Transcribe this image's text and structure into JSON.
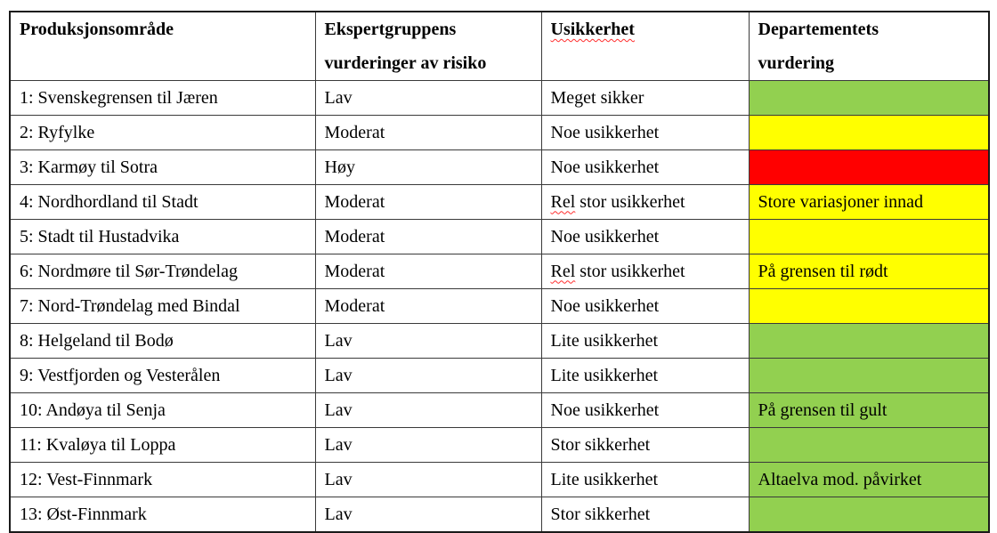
{
  "colors": {
    "green": "#92D050",
    "yellow": "#FFFF00",
    "red": "#FF0000"
  },
  "table": {
    "columns": [
      {
        "id": "produksjonsomrade",
        "label": "Produksjonsområde",
        "misspelled": false
      },
      {
        "id": "ekspertgruppens-vurderinger",
        "label": "Ekspertgruppens\nvurderinger av risiko",
        "misspelled": false
      },
      {
        "id": "usikkerhet",
        "label": "Usikkerhet",
        "misspelled": true
      },
      {
        "id": "departementets-vurdering",
        "label": "Departementets\nvurdering",
        "misspelled": false
      }
    ],
    "rows": [
      {
        "area": "1: Svenskegrensen til Jæren",
        "risk": "Lav",
        "uncertainty": "Meget sikker",
        "uncertainty_misspelled_part": "",
        "assessment": "",
        "status_color": "green"
      },
      {
        "area": "2: Ryfylke",
        "risk": "Moderat",
        "uncertainty": "Noe usikkerhet",
        "uncertainty_misspelled_part": "",
        "assessment": "",
        "status_color": "yellow"
      },
      {
        "area": "3: Karmøy til Sotra",
        "risk": "Høy",
        "uncertainty": "Noe usikkerhet",
        "uncertainty_misspelled_part": "",
        "assessment": "",
        "status_color": "red"
      },
      {
        "area": "4: Nordhordland til Stadt",
        "risk": "Moderat",
        "uncertainty": "Rel stor usikkerhet",
        "uncertainty_misspelled_part": "Rel",
        "assessment": "Store variasjoner innad",
        "status_color": "yellow"
      },
      {
        "area": "5: Stadt til Hustadvika",
        "risk": "Moderat",
        "uncertainty": "Noe usikkerhet",
        "uncertainty_misspelled_part": "",
        "assessment": "",
        "status_color": "yellow"
      },
      {
        "area": "6: Nordmøre til Sør-Trøndelag",
        "risk": "Moderat",
        "uncertainty": "Rel stor usikkerhet",
        "uncertainty_misspelled_part": "Rel",
        "assessment": "På grensen til rødt",
        "status_color": "yellow"
      },
      {
        "area": "7: Nord-Trøndelag med Bindal",
        "risk": "Moderat",
        "uncertainty": "Noe usikkerhet",
        "uncertainty_misspelled_part": "",
        "assessment": "",
        "status_color": "yellow"
      },
      {
        "area": "8: Helgeland til Bodø",
        "risk": "Lav",
        "uncertainty": "Lite usikkerhet",
        "uncertainty_misspelled_part": "",
        "assessment": "",
        "status_color": "green"
      },
      {
        "area": "9: Vestfjorden og Vesterålen",
        "risk": "Lav",
        "uncertainty": "Lite usikkerhet",
        "uncertainty_misspelled_part": "",
        "assessment": "",
        "status_color": "green"
      },
      {
        "area": "10: Andøya til Senja",
        "risk": "Lav",
        "uncertainty": "Noe usikkerhet",
        "uncertainty_misspelled_part": "",
        "assessment": "På grensen til gult",
        "status_color": "green"
      },
      {
        "area": "11: Kvaløya til Loppa",
        "risk": "Lav",
        "uncertainty": "Stor sikkerhet",
        "uncertainty_misspelled_part": "",
        "assessment": "",
        "status_color": "green"
      },
      {
        "area": "12: Vest-Finnmark",
        "risk": "Lav",
        "uncertainty": "Lite usikkerhet",
        "uncertainty_misspelled_part": "",
        "assessment": "Altaelva mod. påvirket",
        "status_color": "green"
      },
      {
        "area": "13: Øst-Finnmark",
        "risk": "Lav",
        "uncertainty": "Stor sikkerhet",
        "uncertainty_misspelled_part": "",
        "assessment": "",
        "status_color": "green"
      }
    ]
  }
}
